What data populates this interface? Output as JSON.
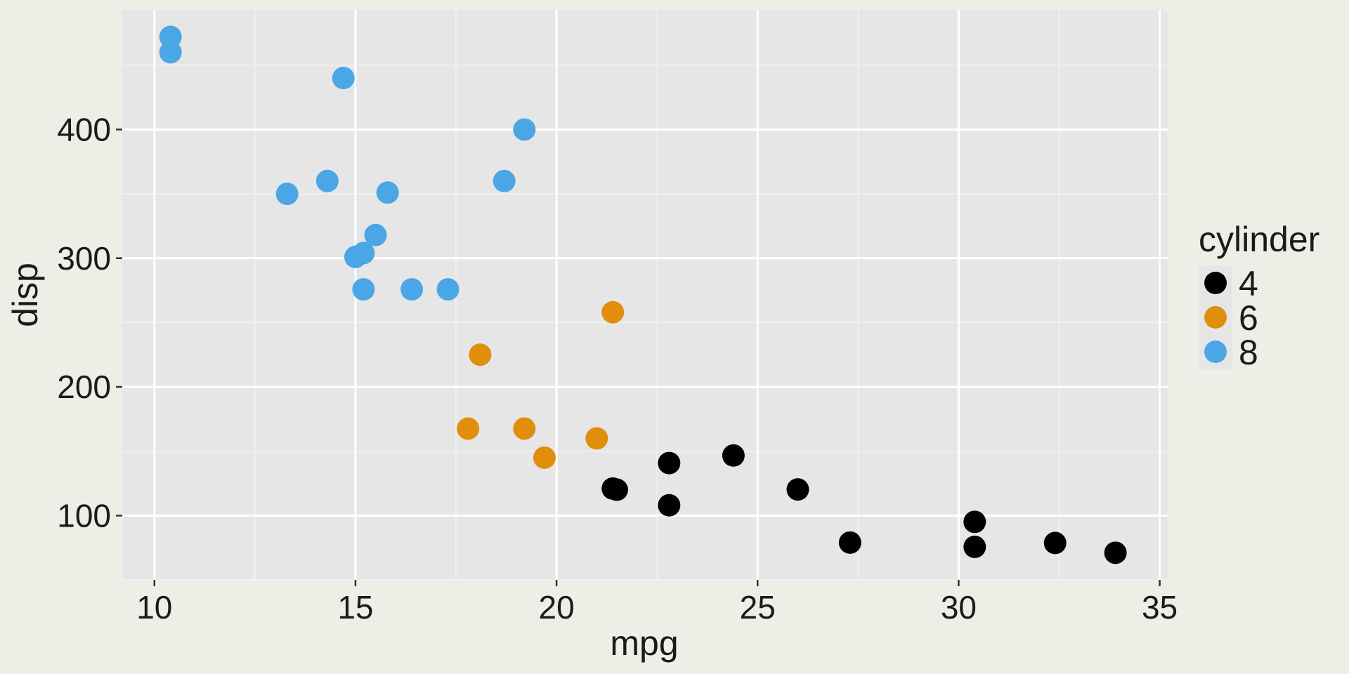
{
  "chart_data": {
    "type": "scatter",
    "title": "",
    "xlabel": "mpg",
    "ylabel": "disp",
    "xlim": [
      9.2,
      35.2
    ],
    "ylim": [
      50,
      493
    ],
    "x_ticks": [
      10,
      15,
      20,
      25,
      30,
      35
    ],
    "y_ticks": [
      100,
      200,
      300,
      400
    ],
    "grid": true,
    "legend_position": "right",
    "legend": {
      "title": "cylinder",
      "entries": [
        {
          "label": "4",
          "color": "#000000"
        },
        {
          "label": "6",
          "color": "#E08E0B"
        },
        {
          "label": "8",
          "color": "#4BA6E6"
        }
      ]
    },
    "series": [
      {
        "name": "4",
        "color": "#000000",
        "points": [
          {
            "x": 22.8,
            "y": 108
          },
          {
            "x": 24.4,
            "y": 146.7
          },
          {
            "x": 22.8,
            "y": 140.8
          },
          {
            "x": 32.4,
            "y": 78.7
          },
          {
            "x": 30.4,
            "y": 75.7
          },
          {
            "x": 33.9,
            "y": 71.1
          },
          {
            "x": 21.5,
            "y": 120.1
          },
          {
            "x": 27.3,
            "y": 79
          },
          {
            "x": 26.0,
            "y": 120.3
          },
          {
            "x": 30.4,
            "y": 95.1
          },
          {
            "x": 21.4,
            "y": 121
          }
        ]
      },
      {
        "name": "6",
        "color": "#E08E0B",
        "points": [
          {
            "x": 21.0,
            "y": 160
          },
          {
            "x": 21.4,
            "y": 258
          },
          {
            "x": 18.1,
            "y": 225
          },
          {
            "x": 19.2,
            "y": 167.6
          },
          {
            "x": 17.8,
            "y": 167.6
          },
          {
            "x": 19.7,
            "y": 145
          }
        ]
      },
      {
        "name": "8",
        "color": "#4BA6E6",
        "points": [
          {
            "x": 18.7,
            "y": 360
          },
          {
            "x": 14.3,
            "y": 360
          },
          {
            "x": 16.4,
            "y": 275.8
          },
          {
            "x": 17.3,
            "y": 275.8
          },
          {
            "x": 15.2,
            "y": 275.8
          },
          {
            "x": 10.4,
            "y": 472
          },
          {
            "x": 10.4,
            "y": 460
          },
          {
            "x": 14.7,
            "y": 440
          },
          {
            "x": 15.5,
            "y": 318
          },
          {
            "x": 15.2,
            "y": 304
          },
          {
            "x": 13.3,
            "y": 350
          },
          {
            "x": 19.2,
            "y": 400
          },
          {
            "x": 15.8,
            "y": 351
          },
          {
            "x": 15.0,
            "y": 301
          }
        ]
      }
    ]
  }
}
